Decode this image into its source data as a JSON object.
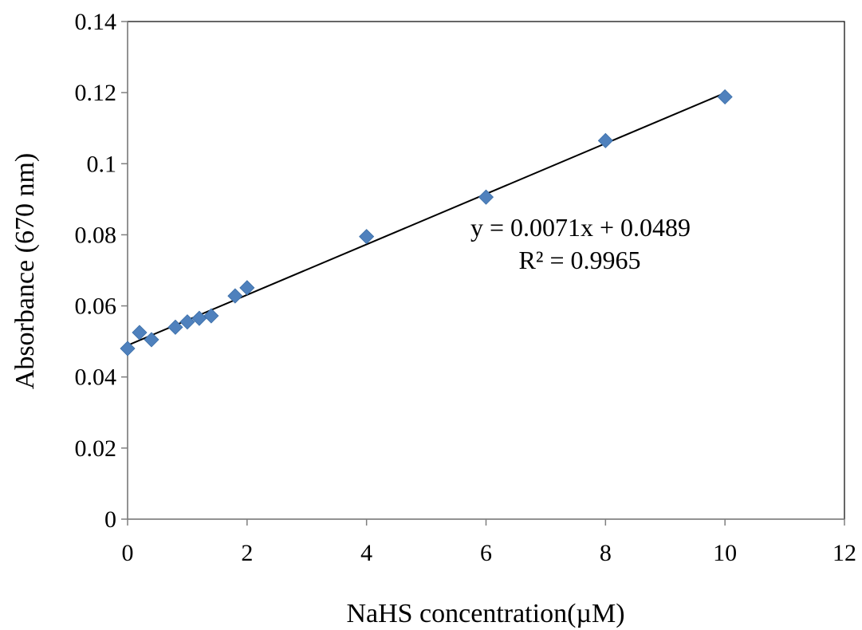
{
  "chart_data": {
    "type": "scatter",
    "xlabel": "NaHS concentration(µM)",
    "ylabel": "Absorbance (670 nm)",
    "xlim": [
      0,
      12
    ],
    "ylim": [
      0,
      0.14
    ],
    "x_ticks": [
      0,
      2,
      4,
      6,
      8,
      10,
      12
    ],
    "y_ticks": [
      0,
      0.02,
      0.04,
      0.06,
      0.08,
      0.1,
      0.12,
      0.14
    ],
    "x_tick_labels": [
      "0",
      "2",
      "4",
      "6",
      "8",
      "10",
      "12"
    ],
    "y_tick_labels": [
      "0",
      "0.02",
      "0.04",
      "0.06",
      "0.08",
      "0.1",
      "0.12",
      "0.14"
    ],
    "grid": false,
    "marker_color": "#4F81BD",
    "line_color": "#000000",
    "series": [
      {
        "x": [
          0,
          0.2,
          0.4,
          0.8,
          1.0,
          1.2,
          1.4,
          1.8,
          2.0,
          4.0,
          6.0,
          8.0,
          10.0
        ],
        "y": [
          0.048,
          0.0525,
          0.0505,
          0.054,
          0.0555,
          0.0565,
          0.0572,
          0.0628,
          0.0651,
          0.0795,
          0.0906,
          0.1065,
          0.1188
        ]
      }
    ],
    "trendline": {
      "slope": 0.0071,
      "intercept": 0.0489,
      "x_range": [
        0,
        10
      ]
    },
    "annotations": [
      "y = 0.0071x + 0.0489",
      "R² = 0.9965"
    ]
  }
}
